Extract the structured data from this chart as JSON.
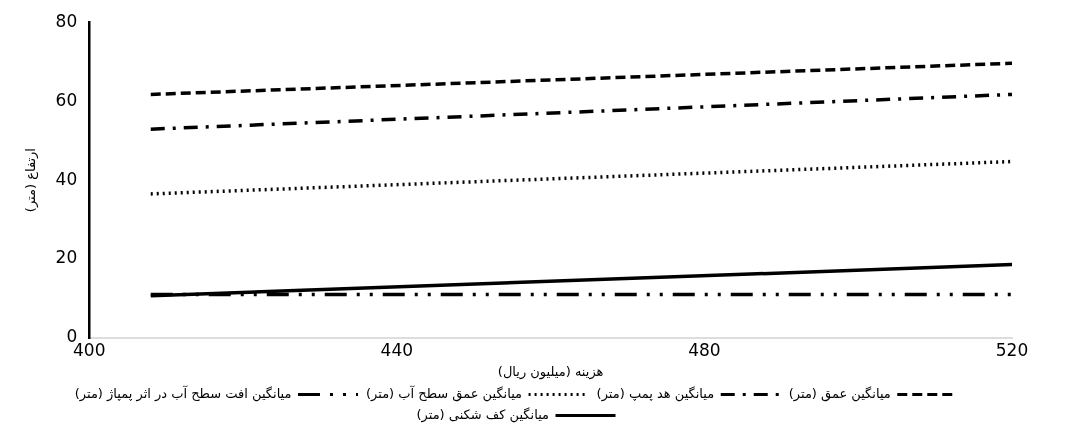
{
  "chart_data": {
    "type": "line",
    "xlabel": "هزینه (میلیون ریال)",
    "ylabel": "ارتفاع (متر)",
    "x": [
      408,
      520
    ],
    "xlim": [
      400,
      520
    ],
    "xticks": [
      400,
      440,
      480,
      520
    ],
    "ylim": [
      0,
      80
    ],
    "yticks": [
      0,
      20,
      40,
      60,
      80
    ],
    "grid": false,
    "legend": "bottom",
    "marker": "none",
    "series": [
      {
        "name": "میانگین عمق (متر)",
        "color": "#000000",
        "line_style": "dashed",
        "values": [
          61.7,
          69.6
        ]
      },
      {
        "name": "میانگین هد پمپ (متر)",
        "color": "#000000",
        "line_style": "dashdot",
        "values": [
          52.9,
          61.7
        ]
      },
      {
        "name": "میانگین عمق سطح آب (متر)",
        "color": "#000000",
        "line_style": "dotted",
        "values": [
          36.5,
          44.7
        ]
      },
      {
        "name": "میانگین افت سطح آب در اثر پمپاژ (متر)",
        "color": "#000000",
        "line_style": "dashdotdot",
        "values": [
          11,
          11
        ]
      },
      {
        "name": "میانگین کف شکنی (متر)",
        "color": "#000000",
        "line_style": "solid",
        "values": [
          10.7,
          18.6
        ]
      }
    ]
  }
}
